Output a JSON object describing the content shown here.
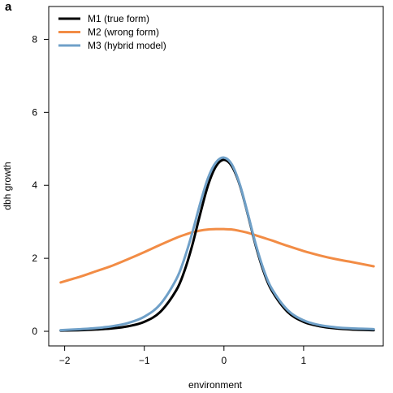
{
  "panel_label": "a",
  "chart_data": {
    "type": "line",
    "xlabel": "environment",
    "ylabel": "dbh growth",
    "xlim": [
      -2.2,
      2.0
    ],
    "ylim": [
      -0.4,
      8.9
    ],
    "x_ticks": [
      -2,
      -1,
      0,
      1
    ],
    "x_tick_labels": [
      "−2",
      "−1",
      "0",
      "1"
    ],
    "y_ticks": [
      0,
      2,
      4,
      6,
      8
    ],
    "y_tick_labels": [
      "0",
      "2",
      "4",
      "6",
      "8"
    ],
    "grid": false,
    "legend_position": "top-left",
    "x": [
      -2.05,
      -1.8,
      -1.6,
      -1.4,
      -1.2,
      -1.0,
      -0.8,
      -0.6,
      -0.5,
      -0.4,
      -0.3,
      -0.2,
      -0.1,
      0.0,
      0.1,
      0.2,
      0.3,
      0.4,
      0.5,
      0.6,
      0.8,
      1.0,
      1.2,
      1.4,
      1.6,
      1.88
    ],
    "series": [
      {
        "name": "M1 (true form)",
        "color": "#000000",
        "values": [
          0.02,
          0.03,
          0.05,
          0.08,
          0.14,
          0.26,
          0.53,
          1.12,
          1.63,
          2.34,
          3.2,
          4.0,
          4.52,
          4.7,
          4.52,
          4.0,
          3.2,
          2.34,
          1.63,
          1.12,
          0.53,
          0.26,
          0.14,
          0.08,
          0.05,
          0.03
        ]
      },
      {
        "name": "M2 (wrong form)",
        "color": "#f28c45",
        "values": [
          1.34,
          1.5,
          1.65,
          1.8,
          1.98,
          2.17,
          2.37,
          2.56,
          2.64,
          2.71,
          2.76,
          2.79,
          2.8,
          2.8,
          2.79,
          2.75,
          2.7,
          2.63,
          2.56,
          2.49,
          2.34,
          2.2,
          2.08,
          1.98,
          1.9,
          1.78
        ]
      },
      {
        "name": "M3 (hybrid model)",
        "color": "#6fa0c8",
        "values": [
          0.03,
          0.06,
          0.09,
          0.14,
          0.23,
          0.4,
          0.74,
          1.42,
          1.97,
          2.68,
          3.49,
          4.2,
          4.63,
          4.76,
          4.57,
          4.02,
          3.22,
          2.38,
          1.68,
          1.17,
          0.58,
          0.3,
          0.17,
          0.11,
          0.08,
          0.06
        ]
      }
    ]
  }
}
